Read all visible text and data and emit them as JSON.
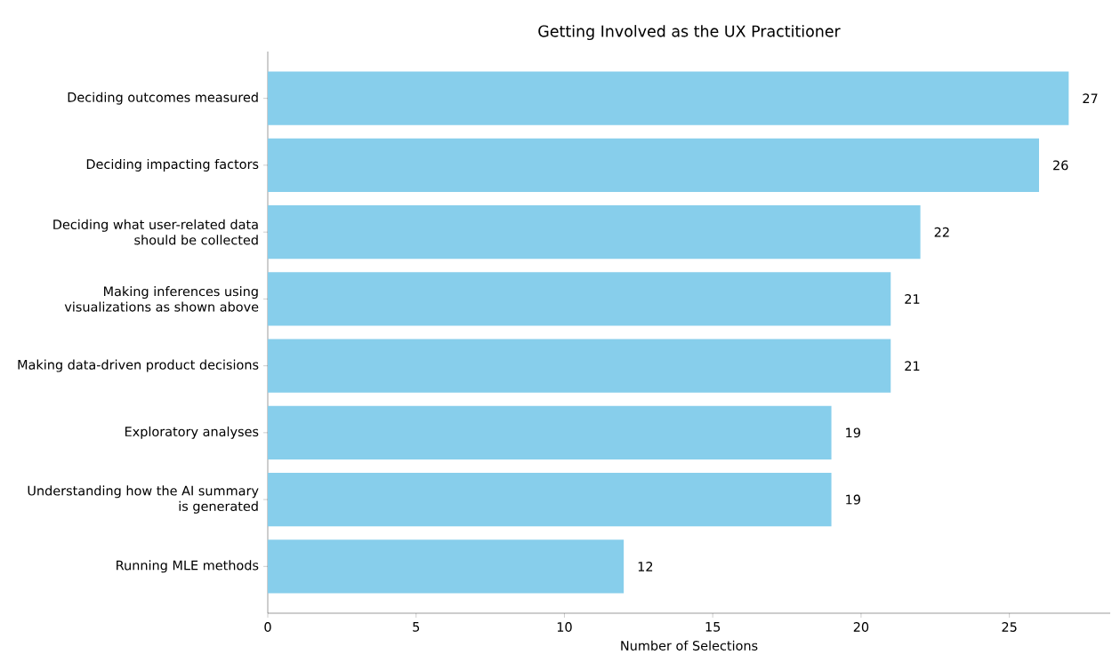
{
  "chart_data": {
    "type": "bar",
    "orientation": "horizontal",
    "title": "Getting Involved as the UX Practitioner",
    "xlabel": "Number of Selections",
    "categories": [
      "Deciding outcomes measured",
      "Deciding impacting factors",
      "Deciding what user-related data should be collected",
      "Making inferences using visualizations as shown above",
      "Making data-driven product decisions",
      "Exploratory analyses",
      "Understanding how the AI summary is generated",
      "Running MLE methods"
    ],
    "values": [
      27,
      26,
      22,
      21,
      21,
      19,
      19,
      12
    ],
    "color": "#87ceeb",
    "data_labels": true,
    "xlim": [
      0,
      28.4
    ],
    "xticks": [
      0,
      5,
      10,
      15,
      20,
      25
    ]
  }
}
